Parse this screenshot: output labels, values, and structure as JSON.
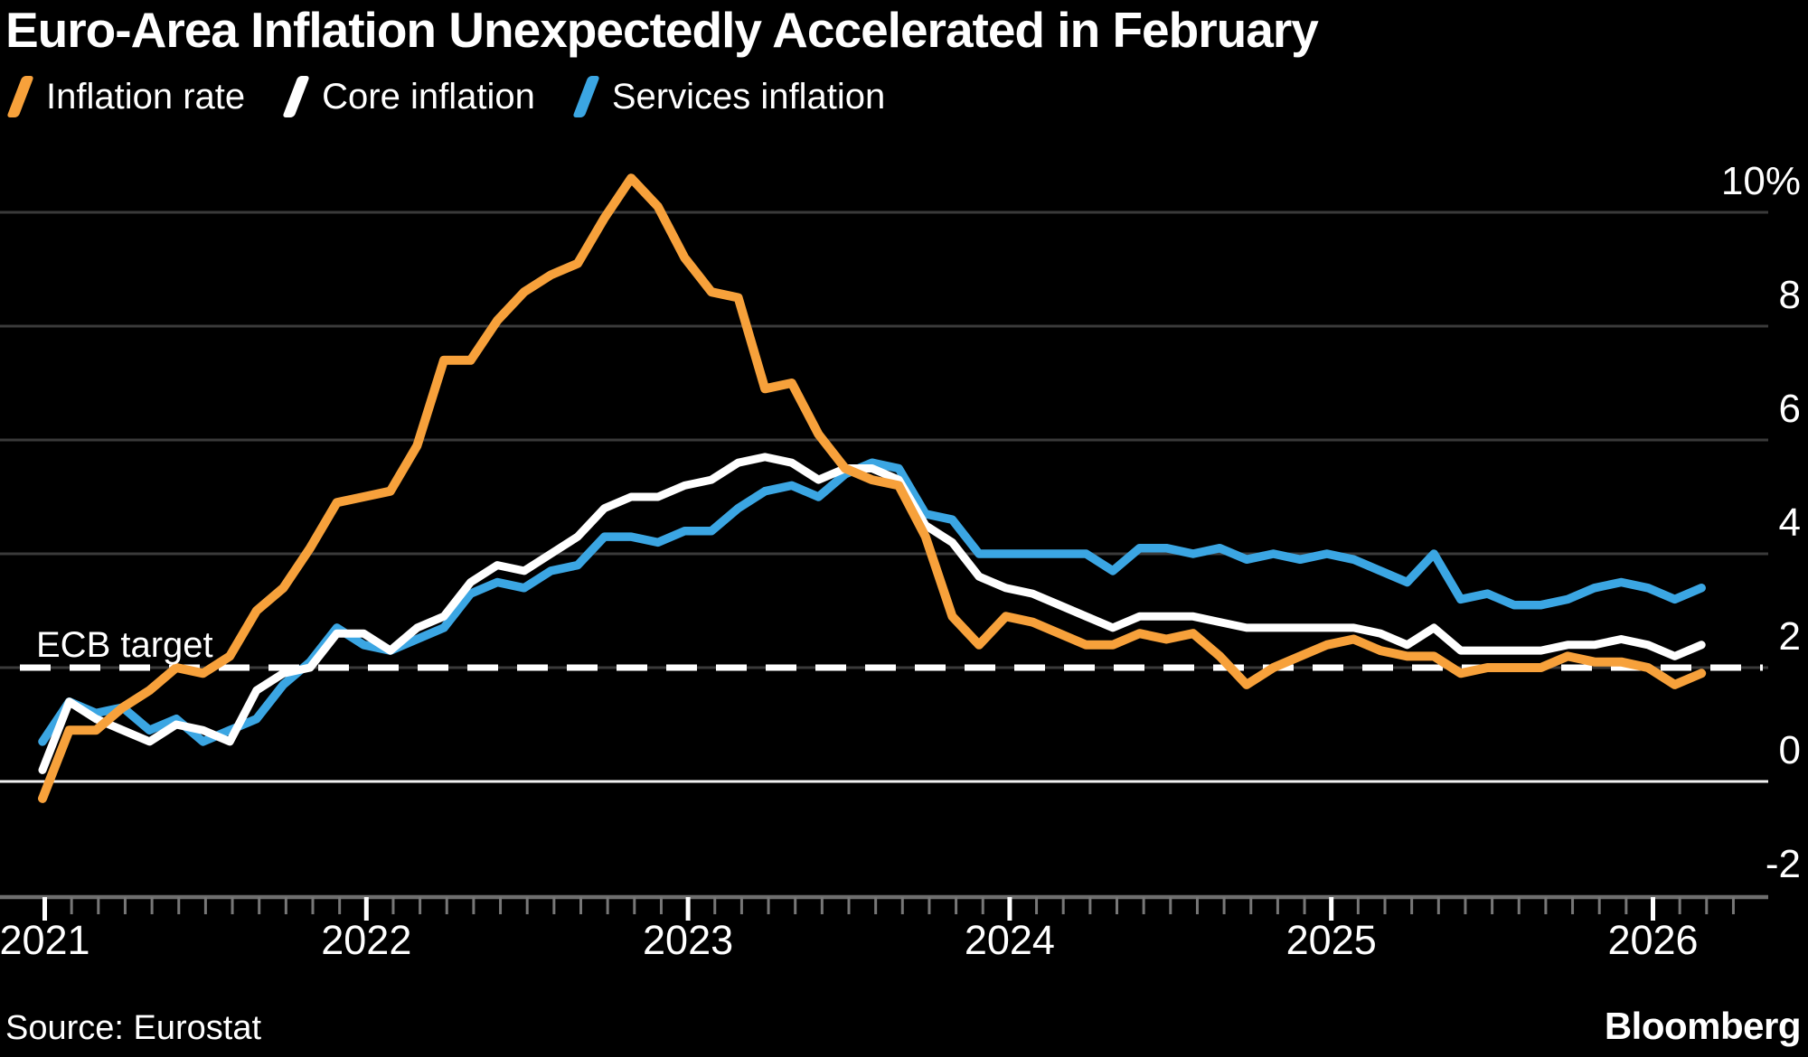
{
  "title": "Euro-Area Inflation Unexpectedly Accelerated in February",
  "legend": [
    {
      "label": "Inflation rate",
      "color": "#F7A13B"
    },
    {
      "label": "Core inflation",
      "color": "#FFFFFF"
    },
    {
      "label": "Services inflation",
      "color": "#3BA6E3"
    }
  ],
  "source": "Source: Eurostat",
  "brand": "Bloomberg",
  "colors": {
    "background": "#000000",
    "gridline": "#3A3A3A",
    "zero_line": "#F2F2F2",
    "axis_line": "#6E6E6E",
    "tick_minor": "#777777",
    "tick_major": "#FFFFFF",
    "target_line": "#FFFFFF",
    "text": "#FFFFFF"
  },
  "chart_data": {
    "type": "line",
    "title": "Euro-Area Inflation Unexpectedly Accelerated in February",
    "xlabel": "",
    "ylabel": "%",
    "ylim": [
      -2.8,
      10.9
    ],
    "grid": "horizontal",
    "legend_position": "top-left",
    "target_label": "ECB target",
    "target_value": 2,
    "y_ticks": [
      10,
      8,
      6,
      4,
      2,
      0,
      -2
    ],
    "y_tick_labels": [
      "10%",
      "8",
      "6",
      "4",
      "2",
      "0",
      "-2"
    ],
    "x_tick_labels": [
      "2021",
      "2022",
      "2023",
      "2024",
      "2025",
      "2026"
    ],
    "x": [
      "Dec 2020",
      "Jan 2021",
      "Feb 2021",
      "Mar 2021",
      "Apr 2021",
      "May 2021",
      "Jun 2021",
      "Jul 2021",
      "Aug 2021",
      "Sep 2021",
      "Oct 2021",
      "Nov 2021",
      "Dec 2021",
      "Jan 2022",
      "Feb 2022",
      "Mar 2022",
      "Apr 2022",
      "May 2022",
      "Jun 2022",
      "Jul 2022",
      "Aug 2022",
      "Sep 2022",
      "Oct 2022",
      "Nov 2022",
      "Dec 2022",
      "Jan 2023",
      "Feb 2023",
      "Mar 2023",
      "Apr 2023",
      "May 2023",
      "Jun 2023",
      "Jul 2023",
      "Aug 2023",
      "Sep 2023",
      "Oct 2023",
      "Nov 2023",
      "Dec 2023",
      "Jan 2024",
      "Feb 2024",
      "Mar 2024",
      "Apr 2024",
      "May 2024",
      "Jun 2024",
      "Jul 2024",
      "Aug 2024",
      "Sep 2024",
      "Oct 2024",
      "Nov 2024",
      "Dec 2024",
      "Jan 2025",
      "Feb 2025",
      "Mar 2025",
      "Apr 2025",
      "May 2025",
      "Jun 2025",
      "Jul 2025",
      "Aug 2025",
      "Sep 2025",
      "Oct 2025",
      "Nov 2025",
      "Dec 2025",
      "Jan 2026",
      "Feb 2026"
    ],
    "series": [
      {
        "name": "Inflation rate",
        "color": "#F7A13B",
        "values": [
          -0.3,
          0.9,
          0.9,
          1.3,
          1.6,
          2.0,
          1.9,
          2.2,
          3.0,
          3.4,
          4.1,
          4.9,
          5.0,
          5.1,
          5.9,
          7.4,
          7.4,
          8.1,
          8.6,
          8.9,
          9.1,
          9.9,
          10.6,
          10.1,
          9.2,
          8.6,
          8.5,
          6.9,
          7.0,
          6.1,
          5.5,
          5.3,
          5.2,
          4.3,
          2.9,
          2.4,
          2.9,
          2.8,
          2.6,
          2.4,
          2.4,
          2.6,
          2.5,
          2.6,
          2.2,
          1.7,
          2.0,
          2.2,
          2.4,
          2.5,
          2.3,
          2.2,
          2.2,
          1.9,
          2.0,
          2.0,
          2.0,
          2.2,
          2.1,
          2.1,
          2.0,
          1.7,
          1.9
        ]
      },
      {
        "name": "Core inflation",
        "color": "#FFFFFF",
        "values": [
          0.2,
          1.4,
          1.1,
          0.9,
          0.7,
          1.0,
          0.9,
          0.7,
          1.6,
          1.9,
          2.0,
          2.6,
          2.6,
          2.3,
          2.7,
          2.9,
          3.5,
          3.8,
          3.7,
          4.0,
          4.3,
          4.8,
          5.0,
          5.0,
          5.2,
          5.3,
          5.6,
          5.7,
          5.6,
          5.3,
          5.5,
          5.5,
          5.3,
          4.5,
          4.2,
          3.6,
          3.4,
          3.3,
          3.1,
          2.9,
          2.7,
          2.9,
          2.9,
          2.9,
          2.8,
          2.7,
          2.7,
          2.7,
          2.7,
          2.7,
          2.6,
          2.4,
          2.7,
          2.3,
          2.3,
          2.3,
          2.3,
          2.4,
          2.4,
          2.5,
          2.4,
          2.2,
          2.4
        ]
      },
      {
        "name": "Services inflation",
        "color": "#3BA6E3",
        "values": [
          0.7,
          1.4,
          1.2,
          1.3,
          0.9,
          1.1,
          0.7,
          0.9,
          1.1,
          1.7,
          2.1,
          2.7,
          2.4,
          2.3,
          2.5,
          2.7,
          3.3,
          3.5,
          3.4,
          3.7,
          3.8,
          4.3,
          4.3,
          4.2,
          4.4,
          4.4,
          4.8,
          5.1,
          5.2,
          5.0,
          5.4,
          5.6,
          5.5,
          4.7,
          4.6,
          4.0,
          4.0,
          4.0,
          4.0,
          4.0,
          3.7,
          4.1,
          4.1,
          4.0,
          4.1,
          3.9,
          4.0,
          3.9,
          4.0,
          3.9,
          3.7,
          3.5,
          4.0,
          3.2,
          3.3,
          3.1,
          3.1,
          3.2,
          3.4,
          3.5,
          3.4,
          3.2,
          3.4
        ]
      }
    ]
  }
}
